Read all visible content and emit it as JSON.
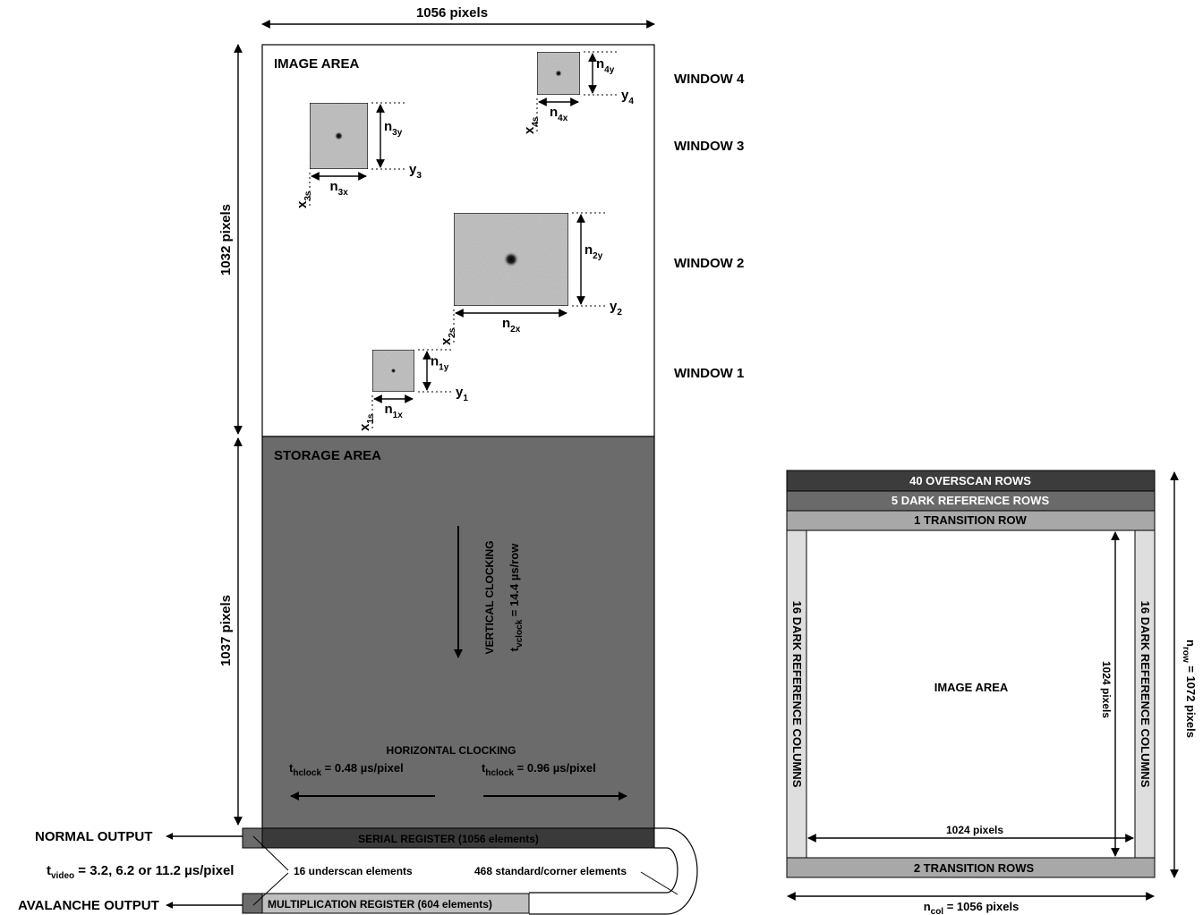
{
  "dimensions": {
    "top_width": "1056 pixels",
    "image_height": "1032 pixels",
    "storage_height": "1037 pixels"
  },
  "image_area": {
    "title": "IMAGE AREA"
  },
  "windows": [
    {
      "label": "WINDOW 4",
      "nx": "n",
      "nx_sub": "4x",
      "ny": "n",
      "ny_sub": "4y",
      "xs": "x",
      "xs_sub": "4s",
      "y": "y",
      "y_sub": "4"
    },
    {
      "label": "WINDOW 3",
      "nx": "n",
      "nx_sub": "3x",
      "ny": "n",
      "ny_sub": "3y",
      "xs": "x",
      "xs_sub": "3s",
      "y": "y",
      "y_sub": "3"
    },
    {
      "label": "WINDOW 2",
      "nx": "n",
      "nx_sub": "2x",
      "ny": "n",
      "ny_sub": "2y",
      "xs": "x",
      "xs_sub": "2s",
      "y": "y",
      "y_sub": "2"
    },
    {
      "label": "WINDOW 1",
      "nx": "n",
      "nx_sub": "1x",
      "ny": "n",
      "ny_sub": "1y",
      "xs": "x",
      "xs_sub": "1s",
      "y": "y",
      "y_sub": "1"
    }
  ],
  "storage_area": {
    "title": "STORAGE AREA",
    "vertical_clocking": "VERTICAL CLOCKING",
    "tvclock_t": "t",
    "tvclock_sub": "vclock",
    "tvclock_val": " = 14.4  µs/row",
    "horizontal_clocking": "HORIZONTAL CLOCKING",
    "th_left_t": "t",
    "th_left_sub": "hclock",
    "th_left_val": " = 0.48  µs/pixel",
    "th_right_t": "t",
    "th_right_sub": "hclock",
    "th_right_val": " = 0.96  µs/pixel"
  },
  "registers": {
    "serial": "SERIAL REGISTER (1056 elements)",
    "multiplication": "MULTIPLICATION REGISTER (604 elements)",
    "underscan": "16 underscan elements",
    "standard": "468 standard/corner elements",
    "normal_output": "NORMAL OUTPUT",
    "avalanche_output": "AVALANCHE OUTPUT",
    "tvideo_t": "t",
    "tvideo_sub": "video",
    "tvideo_val": " = 3.2, 6.2 or 11.2   µs/pixel"
  },
  "layout_diagram": {
    "overscan_rows": "40 OVERSCAN ROWS",
    "dark_ref_rows": "5 DARK REFERENCE ROWS",
    "transition_row": "1 TRANSITION ROW",
    "dark_ref_cols_left": "16 DARK REFERENCE COLUMNS",
    "dark_ref_cols_right": "16 DARK REFERENCE COLUMNS",
    "image_area": "IMAGE AREA",
    "inner_height": "1024 pixels",
    "inner_width": "1024 pixels",
    "transition_rows_bottom": "2 TRANSITION ROWS",
    "nrow_n": "n",
    "nrow_sub": "row",
    "nrow_val": " = 1072 pixels",
    "ncol_n": "n",
    "ncol_sub": "col",
    "ncol_val": " = 1056 pixels"
  },
  "colors": {
    "storage": "#6b6b6b",
    "serial": "#3a3a3a",
    "multiplication": "#bfbfbf",
    "overscan": "#3c3c3c",
    "dark_ref_rows": "#6a6a6a",
    "transition": "#a8a8a8",
    "dark_ref_cols": "#dedede",
    "window_fill": "#c4c4c4"
  }
}
